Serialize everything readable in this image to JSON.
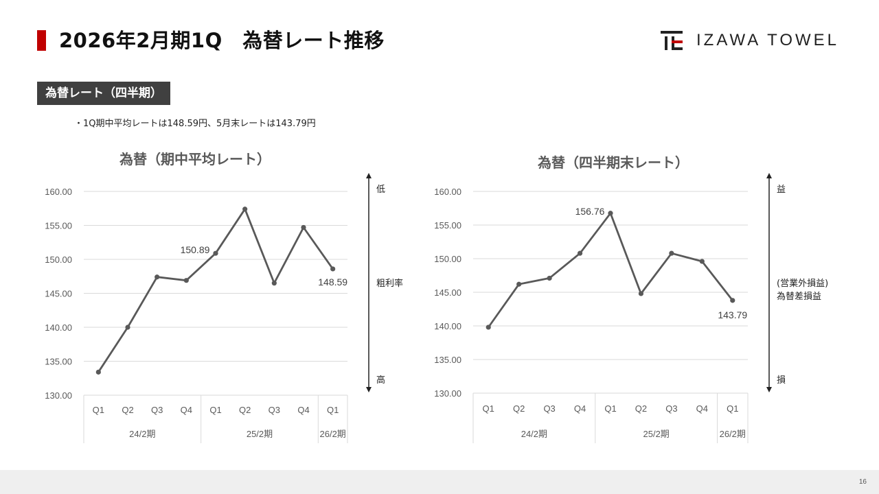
{
  "header": {
    "title": "2026年2月期1Q　為替レート推移",
    "logo_text": "IZAWA TOWEL",
    "accent_color": "#c00000"
  },
  "section": {
    "tag": "為替レート（四半期）",
    "bullet": "・1Q期中平均レートは148.59円、5月末レートは143.79円"
  },
  "page_number": "16",
  "chart_data": [
    {
      "type": "line",
      "title": "為替（期中平均レート）",
      "categories": [
        "Q1",
        "Q2",
        "Q3",
        "Q4",
        "Q1",
        "Q2",
        "Q3",
        "Q4",
        "Q1"
      ],
      "groups": [
        {
          "label": "24/2期",
          "count": 4
        },
        {
          "label": "25/2期",
          "count": 4
        },
        {
          "label": "26/2期",
          "count": 1
        }
      ],
      "values": [
        133.4,
        140.0,
        147.4,
        146.9,
        150.89,
        157.4,
        146.5,
        154.7,
        148.59
      ],
      "data_labels": [
        {
          "index": 4,
          "text": "150.89"
        },
        {
          "index": 8,
          "text": "148.59"
        }
      ],
      "yticks": [
        "160.00",
        "155.00",
        "150.00",
        "145.00",
        "140.00",
        "135.00",
        "130.00"
      ],
      "ylim": [
        130,
        160
      ],
      "grid": true,
      "side_axis": {
        "top": "低",
        "middle": "粗利率",
        "bottom": "高"
      },
      "line_color": "#595959"
    },
    {
      "type": "line",
      "title": "為替（四半期末レート）",
      "categories": [
        "Q1",
        "Q2",
        "Q3",
        "Q4",
        "Q1",
        "Q2",
        "Q3",
        "Q4",
        "Q1"
      ],
      "groups": [
        {
          "label": "24/2期",
          "count": 4
        },
        {
          "label": "25/2期",
          "count": 4
        },
        {
          "label": "26/2期",
          "count": 1
        }
      ],
      "values": [
        139.8,
        146.2,
        147.1,
        150.8,
        156.76,
        144.8,
        150.8,
        149.6,
        143.79
      ],
      "data_labels": [
        {
          "index": 4,
          "text": "156.76"
        },
        {
          "index": 8,
          "text": "143.79"
        }
      ],
      "yticks": [
        "160.00",
        "155.00",
        "150.00",
        "145.00",
        "140.00",
        "135.00",
        "130.00"
      ],
      "ylim": [
        130,
        160
      ],
      "grid": true,
      "side_axis": {
        "top": "益",
        "middle_line1": "(営業外損益)",
        "middle_line2": "為替差損益",
        "bottom": "損"
      },
      "line_color": "#595959"
    }
  ]
}
